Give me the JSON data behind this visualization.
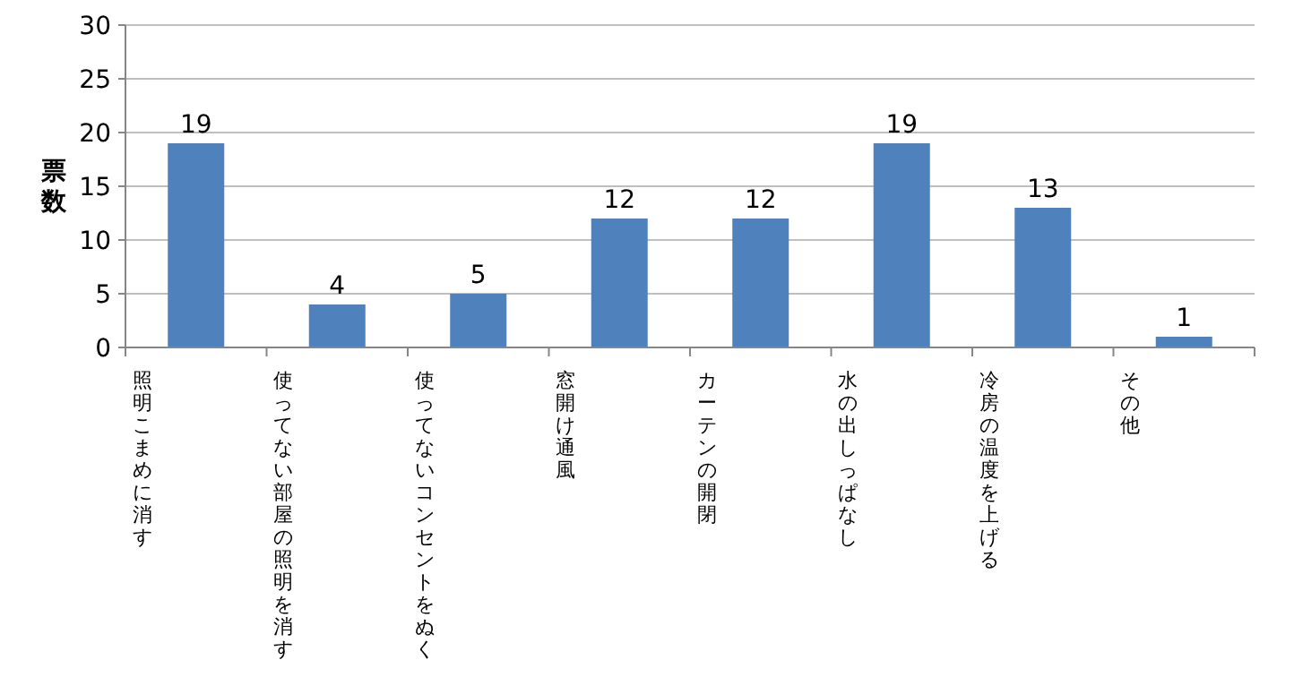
{
  "chart_data": {
    "type": "bar",
    "ylabel": "票数",
    "categories": [
      "照明こまめに消す",
      "使ってない部屋の照明を消す",
      "使ってないコンセントをぬく",
      "窓開け通風",
      "カーテンの開閉",
      "水の出しっぱなし",
      "冷房の温度を上げる",
      "その他"
    ],
    "values": [
      19,
      4,
      5,
      12,
      12,
      19,
      13,
      1
    ],
    "color": "#4f81bd",
    "ylim": [
      0,
      30
    ],
    "yticks": [
      0,
      5,
      10,
      15,
      20,
      25,
      30
    ],
    "grid": "y",
    "data_labels": true
  }
}
